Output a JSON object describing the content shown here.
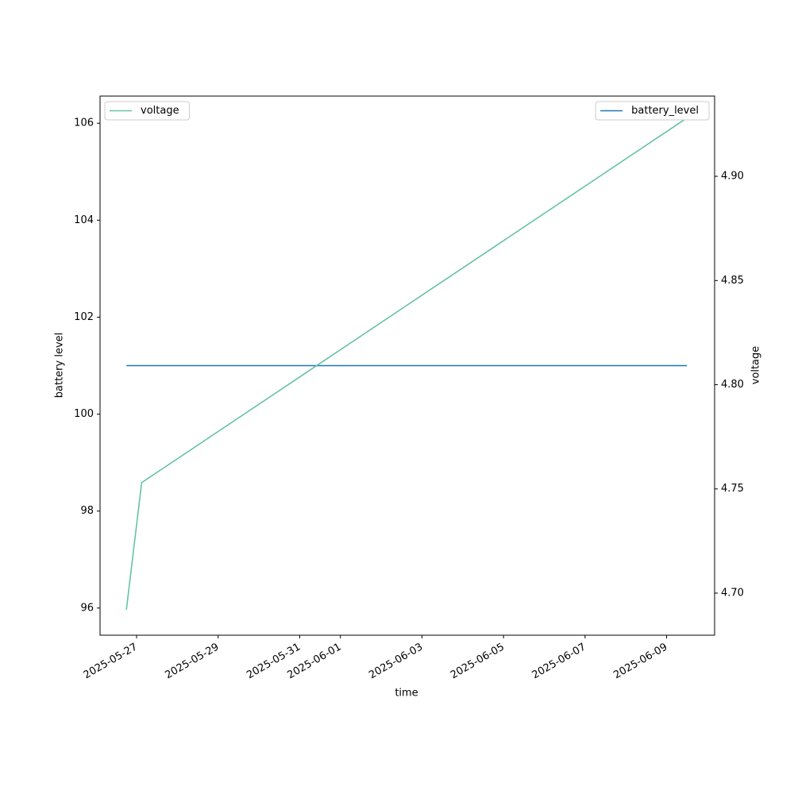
{
  "chart_data": {
    "type": "line",
    "x_label": "time",
    "y_label": "battery level",
    "y2_label": "voltage",
    "x": [
      "2025-05-26T18:00",
      "2025-05-27T03:00",
      "2025-06-09T12:00"
    ],
    "series": [
      {
        "name": "battery_level",
        "color": "#1f77b4",
        "values": [
          101,
          101,
          101
        ],
        "axis": "y",
        "legend": "upper right"
      },
      {
        "name": "voltage",
        "color": "#66c2a5",
        "values": [
          4.692,
          4.753,
          4.928
        ],
        "axis": "y2",
        "legend": "upper left"
      }
    ],
    "xlim": [
      "2025-05-26T02:30",
      "2025-06-10T04:15"
    ],
    "xticks": [
      "2025-05-27",
      "2025-05-29",
      "2025-05-31",
      "2025-06-01",
      "2025-06-03",
      "2025-06-05",
      "2025-06-07",
      "2025-06-09"
    ],
    "ylim": [
      95.44,
      106.56
    ],
    "yticks": [
      96,
      98,
      100,
      102,
      104,
      106
    ],
    "y2lim": [
      4.6798,
      4.9385
    ],
    "y2ticks": [
      {
        "value": 4.7,
        "label": "4.70"
      },
      4.75,
      {
        "value": 4.8,
        "label": "4.80"
      },
      4.85,
      {
        "value": 4.9,
        "label": "4.90"
      }
    ],
    "grid": false
  }
}
